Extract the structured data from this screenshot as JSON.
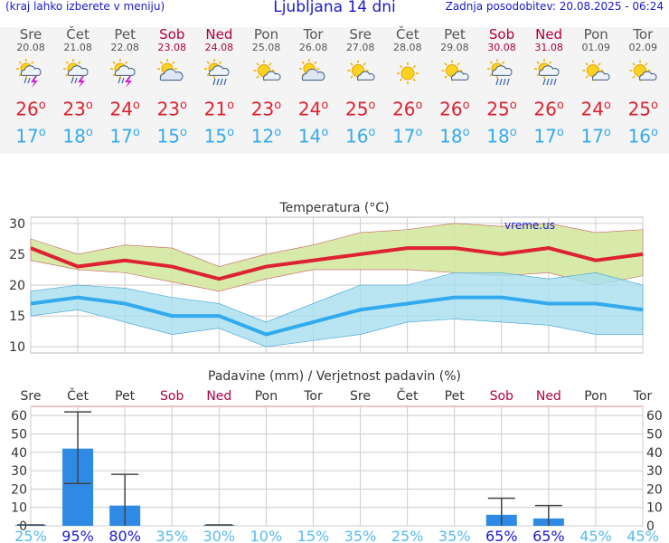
{
  "header": {
    "subtitle": "(kraj lahko izberete v meniju)",
    "title": "Ljubljana 14 dni",
    "updated": "Zadnja posodobitev: 20.08.2025 - 06:24"
  },
  "days": [
    {
      "name": "Sre",
      "date": "20.08",
      "weekend": false,
      "icon": "sun-cloud-lightning-icon",
      "tmax": "26",
      "tmin": "17"
    },
    {
      "name": "Čet",
      "date": "21.08",
      "weekend": false,
      "icon": "sun-cloud-lightning-icon",
      "tmax": "23",
      "tmin": "18"
    },
    {
      "name": "Pet",
      "date": "22.08",
      "weekend": false,
      "icon": "sun-cloud-lightning-icon",
      "tmax": "24",
      "tmin": "17"
    },
    {
      "name": "Sob",
      "date": "23.08",
      "weekend": true,
      "icon": "sun-cloud-icon",
      "tmax": "23",
      "tmin": "15"
    },
    {
      "name": "Ned",
      "date": "24.08",
      "weekend": true,
      "icon": "sun-cloud-rain-icon",
      "tmax": "21",
      "tmin": "15"
    },
    {
      "name": "Pon",
      "date": "25.08",
      "weekend": false,
      "icon": "sun-small-cloud-icon",
      "tmax": "23",
      "tmin": "12"
    },
    {
      "name": "Tor",
      "date": "26.08",
      "weekend": false,
      "icon": "sun-cloud-icon",
      "tmax": "24",
      "tmin": "14"
    },
    {
      "name": "Sre",
      "date": "27.08",
      "weekend": false,
      "icon": "sun-small-cloud-icon",
      "tmax": "25",
      "tmin": "16"
    },
    {
      "name": "Čet",
      "date": "28.08",
      "weekend": false,
      "icon": "sun-icon",
      "tmax": "26",
      "tmin": "17"
    },
    {
      "name": "Pet",
      "date": "29.08",
      "weekend": false,
      "icon": "sun-small-cloud-icon",
      "tmax": "26",
      "tmin": "18"
    },
    {
      "name": "Sob",
      "date": "30.08",
      "weekend": true,
      "icon": "sun-cloud-rain-icon",
      "tmax": "25",
      "tmin": "18"
    },
    {
      "name": "Ned",
      "date": "31.08",
      "weekend": true,
      "icon": "sun-cloud-rain-icon",
      "tmax": "26",
      "tmin": "17"
    },
    {
      "name": "Pon",
      "date": "01.09",
      "weekend": false,
      "icon": "sun-small-cloud-icon",
      "tmax": "24",
      "tmin": "17"
    },
    {
      "name": "Tor",
      "date": "02.09",
      "weekend": false,
      "icon": "sun-small-cloud-icon",
      "tmax": "25",
      "tmin": "16"
    }
  ],
  "colors": {
    "tmax": "#dd2233",
    "tmin": "#33aaee",
    "weekend": "#b00040",
    "max_band": "#d4e8a0",
    "min_band": "#a8dff0",
    "bar": "#2f8ae6",
    "prob_high": "#1a1acc",
    "prob_low": "#55bbee"
  },
  "chart_data": [
    {
      "type": "line",
      "title": "Temperatura (°C)",
      "watermark": "vreme.us",
      "ylim": [
        9,
        31
      ],
      "yticks": [
        10,
        15,
        20,
        25,
        30
      ],
      "x": [
        0,
        1,
        2,
        3,
        4,
        5,
        6,
        7,
        8,
        9,
        10,
        11,
        12,
        13
      ],
      "grid": true,
      "series": [
        {
          "key": "max",
          "values": [
            26,
            23,
            24,
            23,
            21,
            23,
            24,
            25,
            26,
            26,
            25,
            26,
            24,
            25
          ],
          "band_high": [
            27.5,
            25,
            26.5,
            26,
            23,
            25,
            26.5,
            28.5,
            29,
            30,
            29.5,
            30,
            28.5,
            29
          ],
          "band_low": [
            24,
            22.5,
            22,
            20.5,
            19,
            21,
            22.5,
            22.5,
            22.5,
            22,
            21.5,
            22,
            20,
            21.5
          ]
        },
        {
          "key": "min",
          "values": [
            17,
            18,
            17,
            15,
            15,
            12,
            14,
            16,
            17,
            18,
            18,
            17,
            17,
            16
          ],
          "band_high": [
            19,
            20,
            19.5,
            18,
            17,
            14,
            17,
            20,
            20,
            22,
            22,
            21,
            22,
            20
          ],
          "band_low": [
            15,
            16,
            14,
            12,
            13,
            10,
            11,
            12,
            14,
            14.5,
            14,
            13.5,
            12,
            12
          ]
        }
      ]
    },
    {
      "type": "bar",
      "title": "Padavine (mm) / Verjetnost padavin (%)",
      "categories": [
        "Sre",
        "Čet",
        "Pet",
        "Sob",
        "Ned",
        "Pon",
        "Tor",
        "Sre",
        "Čet",
        "Pet",
        "Sob",
        "Ned",
        "Pon",
        "Tor"
      ],
      "weekend": [
        false,
        false,
        false,
        true,
        true,
        false,
        false,
        false,
        false,
        false,
        true,
        true,
        false,
        false
      ],
      "ylim": [
        0,
        65
      ],
      "yticks": [
        0,
        10,
        20,
        30,
        40,
        50,
        60
      ],
      "values": [
        0.5,
        42,
        11,
        0,
        0.5,
        0,
        0,
        0,
        0,
        0,
        6,
        4,
        0,
        0
      ],
      "err_low": [
        0,
        23,
        0,
        0,
        0,
        0,
        0,
        0,
        0,
        0,
        0,
        0,
        0,
        0
      ],
      "err_high": [
        0.5,
        62,
        28,
        0,
        0.5,
        0,
        0,
        0,
        0,
        0,
        15,
        11,
        0,
        0
      ],
      "probabilities": [
        "25%",
        "95%",
        "80%",
        "35%",
        "30%",
        "10%",
        "15%",
        "35%",
        "25%",
        "35%",
        "65%",
        "65%",
        "45%",
        "45%"
      ]
    }
  ]
}
